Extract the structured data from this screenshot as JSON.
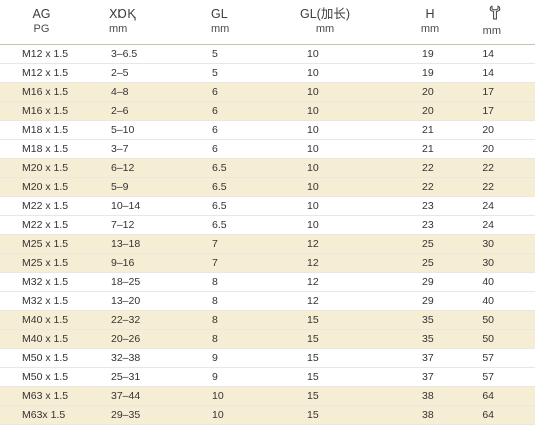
{
  "header": {
    "col0": {
      "line1": "AG",
      "line2": "PG"
    },
    "col1": {
      "line1": "ⅩⱰⱩ",
      "line2": "mm"
    },
    "col2": {
      "line1": "GL",
      "line2": "mm"
    },
    "col3": {
      "line1": "GL(加长)",
      "line2": "mm"
    },
    "col4": {
      "line1": "H",
      "line2": "mm"
    },
    "col5": {
      "icon": "wrench-icon",
      "line2": "mm"
    }
  },
  "rows": [
    [
      "M12 x 1.5",
      "3–6.5",
      "5",
      "10",
      "19",
      "14"
    ],
    [
      "M12 x 1.5",
      "2–5",
      "5",
      "10",
      "19",
      "14"
    ],
    [
      "M16 x 1.5",
      "4–8",
      "6",
      "10",
      "20",
      "17"
    ],
    [
      "M16 x 1.5",
      "2–6",
      "6",
      "10",
      "20",
      "17"
    ],
    [
      "M18 x 1.5",
      "5–10",
      "6",
      "10",
      "21",
      "20"
    ],
    [
      "M18 x 1.5",
      "3–7",
      "6",
      "10",
      "21",
      "20"
    ],
    [
      "M20 x 1.5",
      "6–12",
      "6.5",
      "10",
      "22",
      "22"
    ],
    [
      "M20 x 1.5",
      "5–9",
      "6.5",
      "10",
      "22",
      "22"
    ],
    [
      "M22 x 1.5",
      "10–14",
      "6.5",
      "10",
      "23",
      "24"
    ],
    [
      "M22 x 1.5",
      "7–12",
      "6.5",
      "10",
      "23",
      "24"
    ],
    [
      "M25 x 1.5",
      "13–18",
      "7",
      "12",
      "25",
      "30"
    ],
    [
      "M25 x 1.5",
      "9–16",
      "7",
      "12",
      "25",
      "30"
    ],
    [
      "M32 x 1.5",
      "18–25",
      "8",
      "12",
      "29",
      "40"
    ],
    [
      "M32 x 1.5",
      "13–20",
      "8",
      "12",
      "29",
      "40"
    ],
    [
      "M40 x 1.5",
      "22–32",
      "8",
      "15",
      "35",
      "50"
    ],
    [
      "M40 x 1.5",
      "20–26",
      "8",
      "15",
      "35",
      "50"
    ],
    [
      "M50 x 1.5",
      "32–38",
      "9",
      "15",
      "37",
      "57"
    ],
    [
      "M50 x 1.5",
      "25–31",
      "9",
      "15",
      "37",
      "57"
    ],
    [
      "M63 x 1.5",
      "37–44",
      "10",
      "15",
      "38",
      "64"
    ],
    [
      "M63x 1.5",
      "29–35",
      "10",
      "15",
      "38",
      "64"
    ]
  ],
  "colors": {
    "band": "#f6eed4",
    "text": "#333333"
  }
}
